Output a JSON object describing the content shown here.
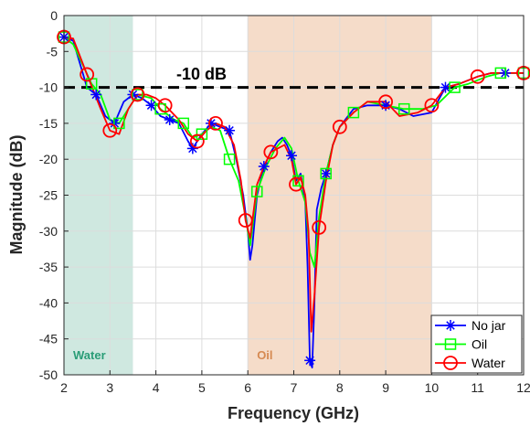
{
  "chart_data": {
    "type": "line",
    "xlabel": "Frequency (GHz)",
    "ylabel": "Magnitude (dB)",
    "xlim": [
      2,
      12
    ],
    "ylim": [
      -50,
      0
    ],
    "xticks": [
      2,
      3,
      4,
      5,
      6,
      7,
      8,
      9,
      10,
      11,
      12
    ],
    "yticks": [
      0,
      -5,
      -10,
      -15,
      -20,
      -25,
      -30,
      -35,
      -40,
      -45,
      -50
    ],
    "grid": true,
    "legend_position": "bottom-right",
    "reference_line": {
      "y": -10,
      "label": "-10 dB",
      "style": "dashed",
      "color": "#000000"
    },
    "bands": [
      {
        "label": "Water",
        "x0": 2,
        "x1": 3.5,
        "fill": "#cfe8e0",
        "text_color": "#2a9d77"
      },
      {
        "label": "Oil",
        "x0": 6,
        "x1": 10,
        "fill": "#f5dcc9",
        "text_color": "#d68a52"
      }
    ],
    "series": [
      {
        "name": "No jar",
        "color": "#0000ff",
        "marker": "asterisk",
        "x": [
          2,
          2.2,
          2.5,
          2.7,
          2.9,
          3.1,
          3.3,
          3.5,
          3.7,
          3.9,
          4.1,
          4.3,
          4.5,
          4.7,
          4.8,
          5.0,
          5.2,
          5.4,
          5.6,
          5.75,
          5.9,
          6.0,
          6.05,
          6.1,
          6.2,
          6.35,
          6.5,
          6.65,
          6.75,
          6.85,
          6.95,
          7.05,
          7.15,
          7.25,
          7.3,
          7.35,
          7.4,
          7.45,
          7.5,
          7.6,
          7.7,
          7.85,
          8.0,
          8.3,
          8.6,
          9.0,
          9.3,
          9.6,
          10.0,
          10.3,
          10.6,
          11.0,
          11.3,
          11.6,
          12.0
        ],
        "y": [
          -3,
          -3.5,
          -10,
          -11,
          -14,
          -15,
          -12,
          -11,
          -11.5,
          -12.5,
          -14,
          -14.5,
          -15,
          -17.5,
          -18.5,
          -16.5,
          -15,
          -15.5,
          -16,
          -20,
          -25,
          -30,
          -34,
          -32,
          -25,
          -21,
          -19,
          -17.5,
          -17,
          -18,
          -19.5,
          -23,
          -22,
          -26,
          -35,
          -48,
          -49,
          -40,
          -27,
          -24,
          -22,
          -18,
          -15.5,
          -13,
          -12.5,
          -12.5,
          -13,
          -14,
          -13.5,
          -10,
          -9.5,
          -8.5,
          -8,
          -8,
          -8
        ]
      },
      {
        "name": "Oil",
        "color": "#00ff00",
        "marker": "square",
        "x": [
          2,
          2.2,
          2.6,
          2.8,
          3.0,
          3.2,
          3.4,
          3.6,
          3.9,
          4.1,
          4.4,
          4.6,
          4.8,
          5.0,
          5.2,
          5.4,
          5.6,
          5.8,
          5.95,
          6.05,
          6.2,
          6.4,
          6.6,
          6.8,
          6.95,
          7.1,
          7.25,
          7.35,
          7.45,
          7.55,
          7.7,
          7.85,
          8.0,
          8.3,
          8.6,
          9.0,
          9.4,
          9.8,
          10.1,
          10.5,
          10.8,
          11.2,
          11.5,
          11.8,
          12.0
        ],
        "y": [
          -3,
          -4,
          -9.5,
          -11,
          -14.5,
          -15,
          -13,
          -11,
          -11.5,
          -13,
          -14.5,
          -15,
          -17,
          -16.5,
          -15.5,
          -16,
          -20,
          -23,
          -28,
          -32,
          -24.5,
          -21,
          -18.5,
          -17,
          -18.5,
          -23,
          -26,
          -33,
          -35,
          -28,
          -22,
          -18,
          -15.5,
          -13.5,
          -12,
          -12.5,
          -13,
          -13,
          -12.5,
          -10,
          -9.5,
          -8.5,
          -8,
          -8,
          -8
        ]
      },
      {
        "name": "Water",
        "color": "#ff0000",
        "marker": "circle",
        "x": [
          2,
          2.2,
          2.5,
          2.8,
          3.0,
          3.2,
          3.4,
          3.6,
          3.8,
          4.0,
          4.2,
          4.5,
          4.7,
          4.9,
          5.1,
          5.3,
          5.5,
          5.7,
          5.85,
          5.95,
          6.05,
          6.2,
          6.35,
          6.5,
          6.65,
          6.8,
          6.95,
          7.05,
          7.15,
          7.25,
          7.32,
          7.38,
          7.45,
          7.55,
          7.7,
          7.85,
          8.0,
          8.3,
          8.6,
          9.0,
          9.3,
          9.7,
          10.0,
          10.3,
          10.6,
          11.0,
          11.3,
          11.6,
          12.0
        ],
        "y": [
          -3,
          -3.2,
          -8.2,
          -13,
          -16,
          -16.5,
          -13,
          -11,
          -11,
          -11.5,
          -12.5,
          -14.5,
          -16.5,
          -17.5,
          -16,
          -15,
          -15.5,
          -18,
          -23,
          -28.5,
          -31,
          -23.5,
          -21,
          -19,
          -18.5,
          -18,
          -20,
          -23.5,
          -22.5,
          -25,
          -30,
          -44,
          -39,
          -29.5,
          -23,
          -18,
          -15.5,
          -13.5,
          -12,
          -12,
          -14,
          -13.5,
          -12.5,
          -10,
          -9.5,
          -8.5,
          -8,
          -8,
          -8
        ]
      }
    ]
  }
}
